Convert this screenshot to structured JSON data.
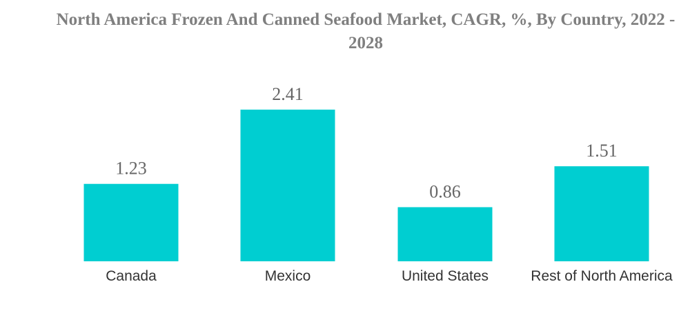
{
  "chart_data": {
    "type": "bar",
    "title": "North America Frozen And Canned Seafood Market, CAGR, %, By Country, 2022 - 2028",
    "categories": [
      "Canada",
      "Mexico",
      "United States",
      "Rest of North America"
    ],
    "values": [
      1.23,
      2.41,
      0.86,
      1.51
    ],
    "value_labels": [
      "1.23",
      "2.41",
      "0.86",
      "1.51"
    ],
    "xlabel": "",
    "ylabel": "",
    "ylim": [
      0,
      2.41
    ],
    "grid": false,
    "legend": "none",
    "bar_color": "#00CED1"
  }
}
